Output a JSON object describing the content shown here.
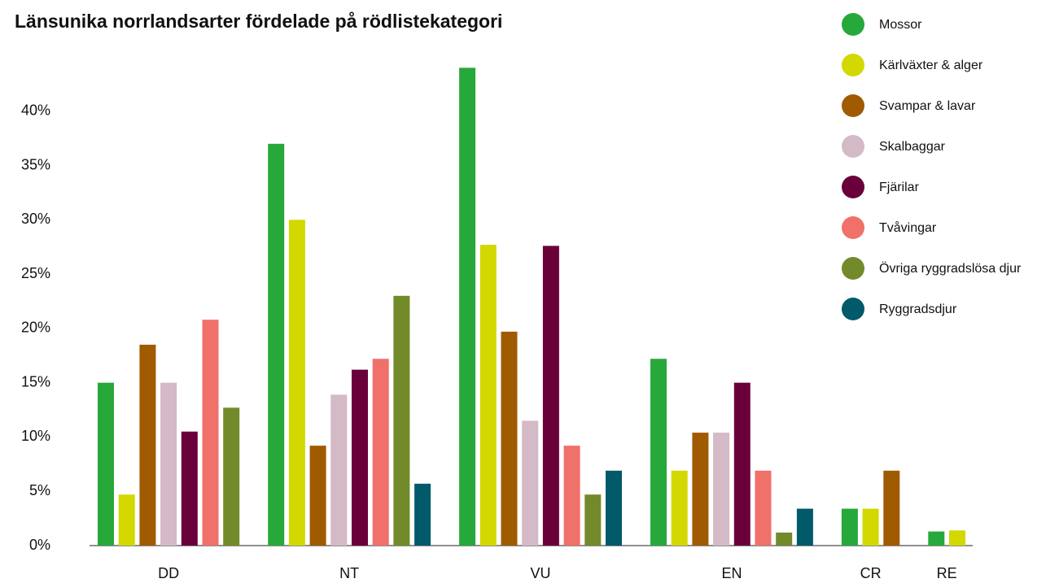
{
  "chart_data": {
    "type": "bar",
    "title": "Länsunika norrlandsarter fördelade på rödlistekategori",
    "categories": [
      "DD",
      "NT",
      "VU",
      "EN",
      "CR",
      "RE"
    ],
    "series": [
      {
        "name": "Mossor",
        "color": "#27a83a",
        "values": [
          15,
          37,
          44,
          17.2,
          3.4,
          1.3
        ]
      },
      {
        "name": "Kärlväxter & alger",
        "color": "#d2d800",
        "values": [
          4.7,
          30,
          27.7,
          6.9,
          3.4,
          1.4
        ]
      },
      {
        "name": "Svampar & lavar",
        "color": "#a05a00",
        "values": [
          18.5,
          9.2,
          19.7,
          10.4,
          6.9,
          null
        ]
      },
      {
        "name": "Skalbaggar",
        "color": "#d4b9c6",
        "values": [
          15,
          13.9,
          11.5,
          10.4,
          null,
          null
        ]
      },
      {
        "name": "Fjärilar",
        "color": "#6a003a",
        "values": [
          10.5,
          16.2,
          27.6,
          15,
          null,
          null
        ]
      },
      {
        "name": "Tvåvingar",
        "color": "#f0706a",
        "values": [
          20.8,
          17.2,
          9.2,
          6.9,
          null,
          null
        ]
      },
      {
        "name": "Övriga ryggradslösa djur",
        "color": "#728a2a",
        "values": [
          12.7,
          23,
          4.7,
          1.2,
          null,
          null
        ]
      },
      {
        "name": "Ryggradsdjur",
        "color": "#005a6a",
        "values": [
          null,
          5.7,
          6.9,
          3.4,
          null,
          null
        ]
      }
    ],
    "ylim": [
      0,
      45
    ],
    "yticks": [
      {
        "value": 0,
        "label": "0%"
      },
      {
        "value": 5,
        "label": "5%"
      },
      {
        "value": 10,
        "label": "10%"
      },
      {
        "value": 15,
        "label": "15%"
      },
      {
        "value": 20,
        "label": "20%"
      },
      {
        "value": 25,
        "label": "25%"
      },
      {
        "value": 30,
        "label": "30%"
      },
      {
        "value": 35,
        "label": "35%"
      },
      {
        "value": 40,
        "label": "40%"
      }
    ],
    "grid": false,
    "legend": "top-right"
  }
}
